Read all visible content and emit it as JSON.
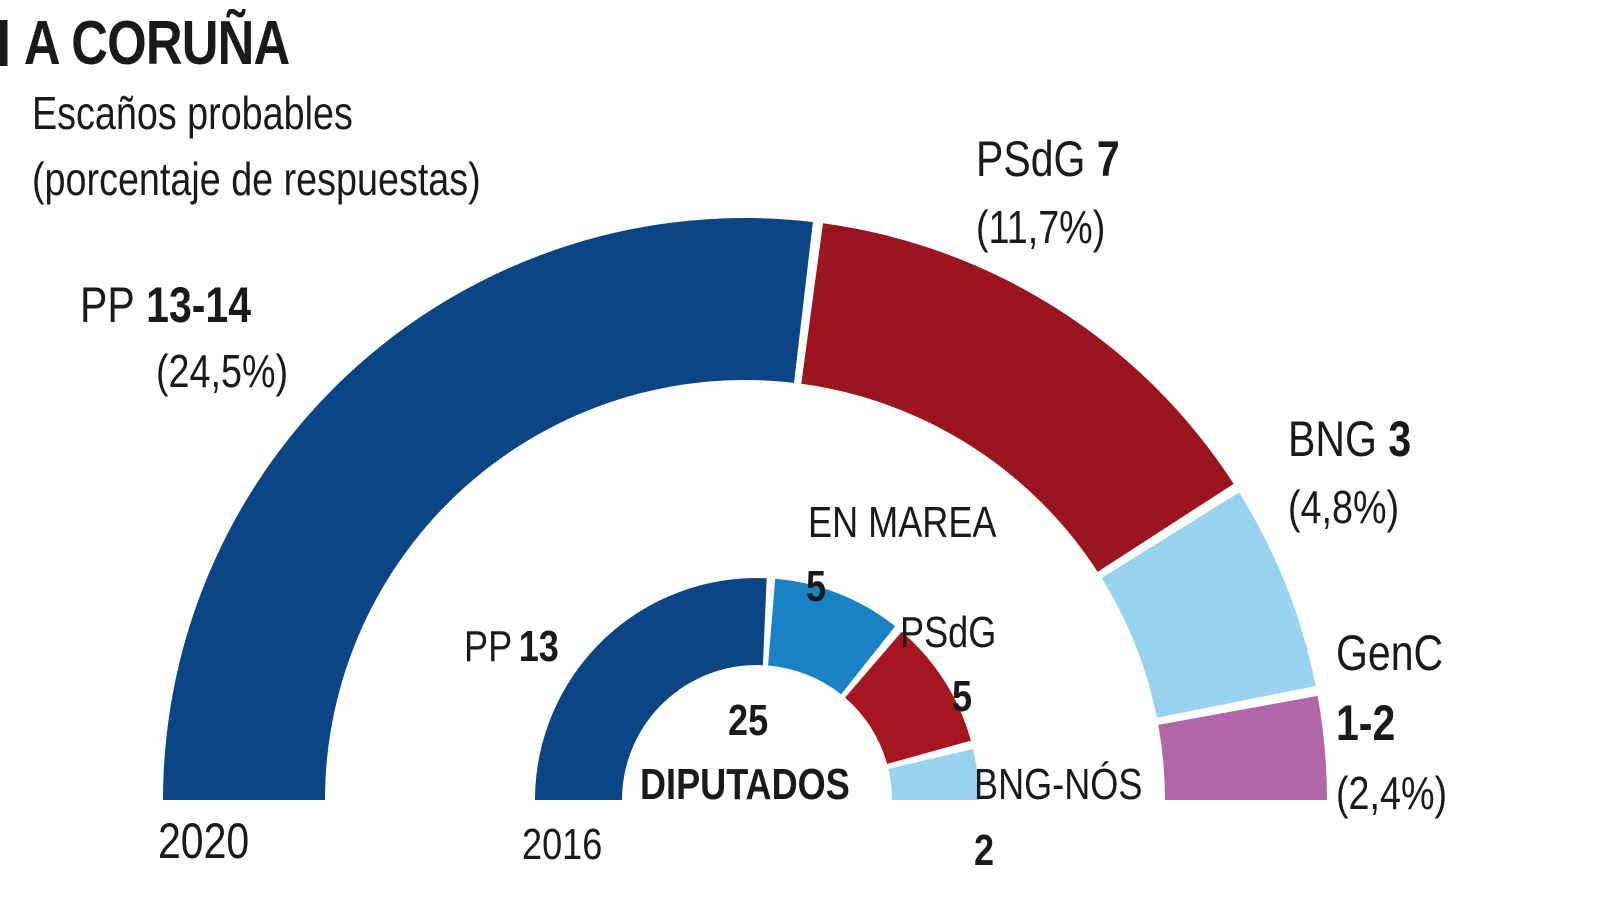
{
  "header": {
    "title": "A CORUÑA",
    "subtitle_line1": "Escaños probables",
    "subtitle_line2": "(porcentaje de respuestas)"
  },
  "chart_data": [
    {
      "type": "pie",
      "subtype": "semicircle-donut",
      "year_label": "2020",
      "total_seats": 25,
      "series": [
        {
          "party": "PP",
          "seats_label": "13-14",
          "seats": 13.5,
          "percent_label": "(24,5%)",
          "percent": 24.5,
          "color": "#0b4586"
        },
        {
          "party": "PSdG",
          "seats_label": "7",
          "seats": 7,
          "percent_label": "(11,7%)",
          "percent": 11.7,
          "color": "#9b1520"
        },
        {
          "party": "BNG",
          "seats_label": "3",
          "seats": 3,
          "percent_label": "(4,8%)",
          "percent": 4.8,
          "color": "#97d3ee"
        },
        {
          "party": "GenC",
          "seats_label": "1-2",
          "seats": 1.5,
          "percent_label": "(2,4%)",
          "percent": 2.4,
          "color": "#b066a8"
        }
      ]
    },
    {
      "type": "pie",
      "subtype": "semicircle-donut",
      "year_label": "2016",
      "total_seats": 25,
      "center_number": "25",
      "center_label": "DIPUTADOS",
      "series": [
        {
          "party": "PP",
          "seats_label": "13",
          "seats": 13,
          "color": "#0b4586"
        },
        {
          "party": "EN MAREA",
          "seats_label": "5",
          "seats": 5,
          "color": "#1a82c4"
        },
        {
          "party": "PSdG",
          "seats_label": "5",
          "seats": 5,
          "color": "#a51620"
        },
        {
          "party": "BNG-NÓS",
          "seats_label": "2",
          "seats": 2,
          "color": "#97d3ee"
        }
      ]
    }
  ]
}
